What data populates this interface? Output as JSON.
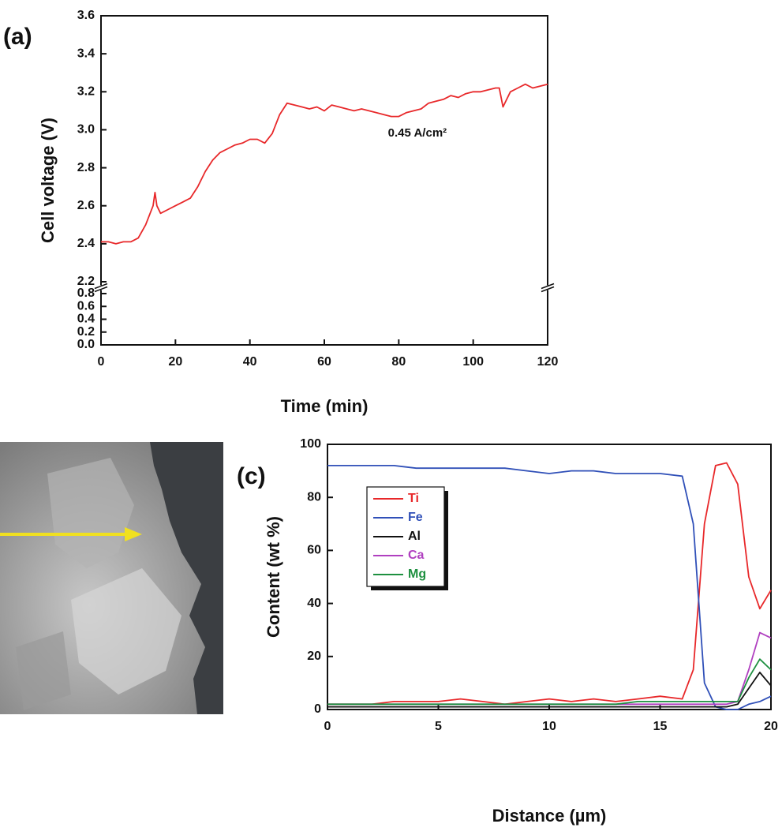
{
  "chart_data": [
    {
      "type": "line",
      "panel_label": "(a)",
      "xlabel": "Time (min)",
      "ylabel": "Cell voltage (V)",
      "annotation": "0.45 A/cm²",
      "xlim": [
        0,
        120
      ],
      "xticks": [
        0,
        20,
        40,
        60,
        80,
        100,
        120
      ],
      "ylim": [
        0,
        3.6
      ],
      "axis_break": [
        0.8,
        2.2
      ],
      "yticks": [
        {
          "value": 0,
          "label": "0.0"
        },
        0.2,
        0.4,
        0.6,
        0.8,
        2.2,
        2.4,
        2.6,
        2.8,
        {
          "value": 3,
          "label": "3.0"
        },
        3.2,
        3.4,
        3.6
      ],
      "x": [
        0,
        2,
        4,
        6,
        8,
        10,
        12,
        14,
        14.5,
        15,
        16,
        18,
        20,
        22,
        24,
        26,
        28,
        30,
        32,
        34,
        36,
        38,
        40,
        42,
        44,
        46,
        48,
        50,
        52,
        54,
        56,
        58,
        60,
        62,
        64,
        66,
        68,
        70,
        72,
        74,
        76,
        78,
        80,
        82,
        84,
        86,
        88,
        90,
        92,
        94,
        96,
        98,
        100,
        102,
        104,
        106,
        107,
        108,
        109,
        110,
        112,
        114,
        116,
        118,
        120
      ],
      "series": [
        {
          "color": "#e8282a",
          "values": [
            2.41,
            2.41,
            2.4,
            2.41,
            2.41,
            2.43,
            2.5,
            2.6,
            2.67,
            2.6,
            2.56,
            2.58,
            2.6,
            2.62,
            2.64,
            2.7,
            2.78,
            2.84,
            2.88,
            2.9,
            2.92,
            2.93,
            2.95,
            2.95,
            2.93,
            2.98,
            3.08,
            3.14,
            3.13,
            3.12,
            3.11,
            3.12,
            3.1,
            3.13,
            3.12,
            3.11,
            3.1,
            3.11,
            3.1,
            3.09,
            3.08,
            3.07,
            3.07,
            3.09,
            3.1,
            3.11,
            3.14,
            3.15,
            3.16,
            3.18,
            3.17,
            3.19,
            3.2,
            3.2,
            3.21,
            3.22,
            3.22,
            3.12,
            3.16,
            3.2,
            3.22,
            3.24,
            3.22,
            3.23,
            3.24
          ]
        }
      ]
    },
    {
      "type": "line",
      "panel_label": "(c)",
      "xlabel": "Distance (µm)",
      "ylabel": "Content (wt %)",
      "xlim": [
        0,
        20
      ],
      "xticks": [
        0,
        5,
        10,
        15,
        20
      ],
      "ylim": [
        0,
        100
      ],
      "yticks": [
        0,
        20,
        40,
        60,
        80,
        100
      ],
      "legend": "upper left",
      "x": [
        0,
        1,
        2,
        3,
        4,
        5,
        6,
        7,
        8,
        9,
        10,
        11,
        12,
        13,
        14,
        15,
        16,
        16.5,
        17,
        17.5,
        18,
        18.5,
        19,
        19.5,
        20
      ],
      "series": [
        {
          "name": "Ti",
          "color": "#e8282a",
          "values": [
            2,
            2,
            2,
            3,
            3,
            3,
            4,
            3,
            2,
            3,
            4,
            3,
            4,
            3,
            4,
            5,
            4,
            15,
            70,
            92,
            93,
            85,
            50,
            38,
            45
          ]
        },
        {
          "name": "Fe",
          "color": "#3050b8",
          "values": [
            92,
            92,
            92,
            92,
            91,
            91,
            91,
            91,
            91,
            90,
            89,
            90,
            90,
            89,
            89,
            89,
            88,
            70,
            10,
            1,
            0,
            0,
            2,
            3,
            5
          ]
        },
        {
          "name": "Al",
          "color": "#111111",
          "values": [
            1,
            1,
            1,
            1,
            1,
            1,
            1,
            1,
            1,
            1,
            1,
            1,
            1,
            1,
            1,
            1,
            1,
            1,
            1,
            1,
            1,
            2,
            8,
            14,
            9
          ]
        },
        {
          "name": "Ca",
          "color": "#b040c0",
          "values": [
            2,
            2,
            2,
            2,
            2,
            2,
            2,
            2,
            2,
            2,
            2,
            2,
            2,
            2,
            2,
            2,
            2,
            2,
            2,
            2,
            2,
            3,
            15,
            29,
            27
          ]
        },
        {
          "name": "Mg",
          "color": "#1e9040",
          "values": [
            2,
            2,
            2,
            2,
            2,
            2,
            2,
            2,
            2,
            2,
            2,
            2,
            2,
            2,
            3,
            3,
            3,
            3,
            3,
            3,
            3,
            3,
            12,
            19,
            15
          ]
        }
      ]
    }
  ]
}
